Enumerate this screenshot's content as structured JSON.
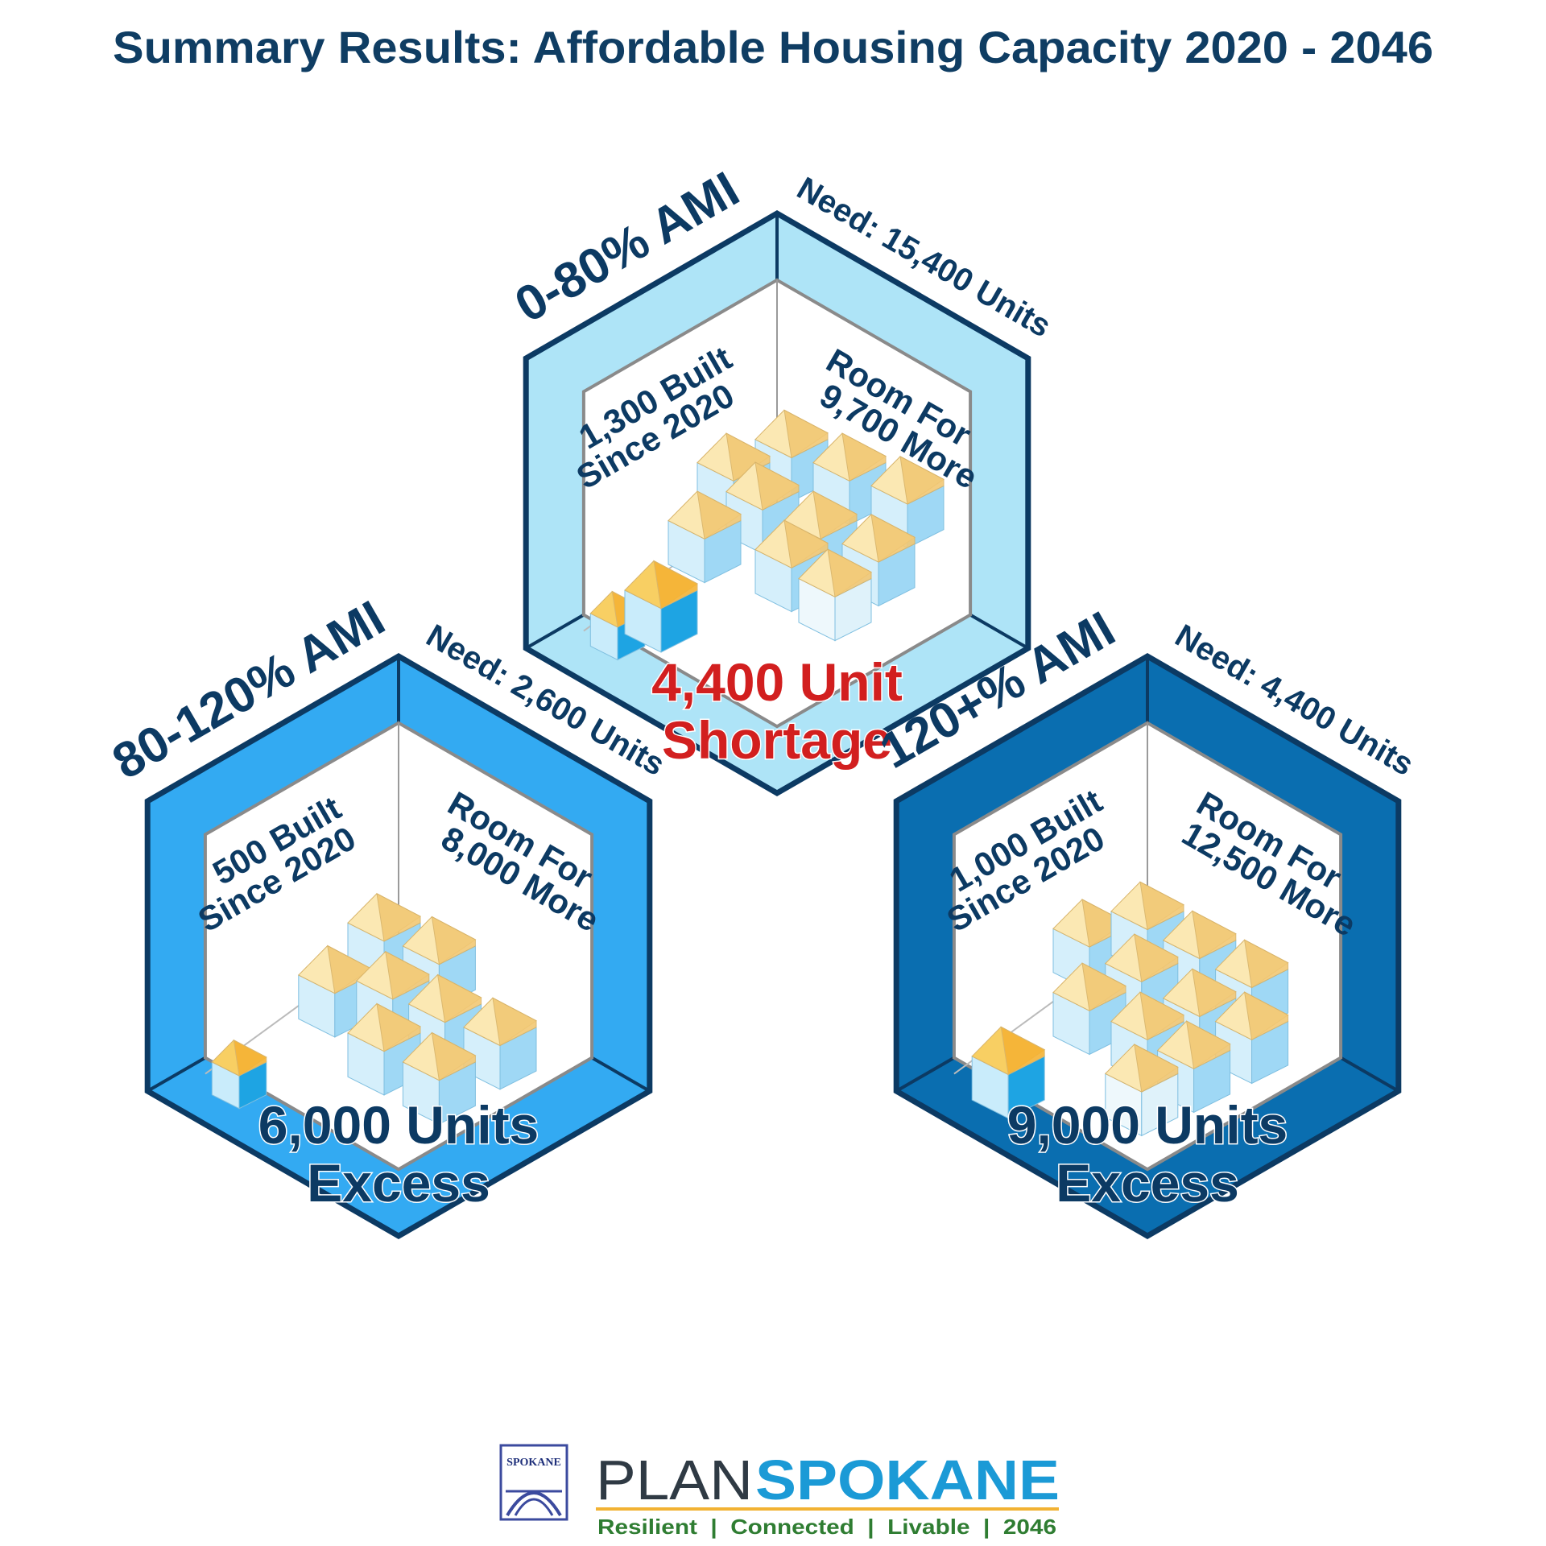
{
  "title": "Summary Results: Affordable Housing Capacity 2020 - 2046",
  "colors": {
    "title": "#0f3d63",
    "outline": "#0c3a63",
    "hex_light": "#aee4f7",
    "hex_mid": "#33aaf2",
    "hex_dark": "#0a6eb0",
    "shortage": "#d21f1f",
    "roof_top": "#fbe8b3",
    "roof_side": "#f2c874",
    "wall_left": "#d5effb",
    "wall_right": "#9fd8f5",
    "built_roof": "#f5b335",
    "built_wall": "#1ea4e3",
    "logo_blue": "#1b9ad6",
    "logo_green": "#2f7d32",
    "logo_dark": "#2f3a44"
  },
  "hexes": [
    {
      "category": "0-80% AMI",
      "need": "Need: 15,400 Units",
      "built_line1": "1,300 Built",
      "built_line2": "Since 2020",
      "room_line1": "Room For",
      "room_line2": "9,700 More",
      "result_line1": "4,400 Unit",
      "result_line2": "Shortage",
      "result_status": "shortage"
    },
    {
      "category": "80-120% AMI",
      "need": "Need: 2,600 Units",
      "built_line1": "500 Built",
      "built_line2": "Since 2020",
      "room_line1": "Room For",
      "room_line2": "8,000 More",
      "result_line1": "6,000 Units",
      "result_line2": "Excess",
      "result_status": "excess"
    },
    {
      "category": "120+% AMI",
      "need": "Need: 4,400 Units",
      "built_line1": "1,000 Built",
      "built_line2": "Since 2020",
      "room_line1": "Room For",
      "room_line2": "12,500 More",
      "result_line1": "9,000 Units",
      "result_line2": "Excess",
      "result_status": "excess"
    }
  ],
  "logo": {
    "plan": "PLAN",
    "spokane": "SPOKANE",
    "tagline": "Resilient  |  Connected  |  Livable  |  2046",
    "seal_text": "SPOKANE"
  }
}
